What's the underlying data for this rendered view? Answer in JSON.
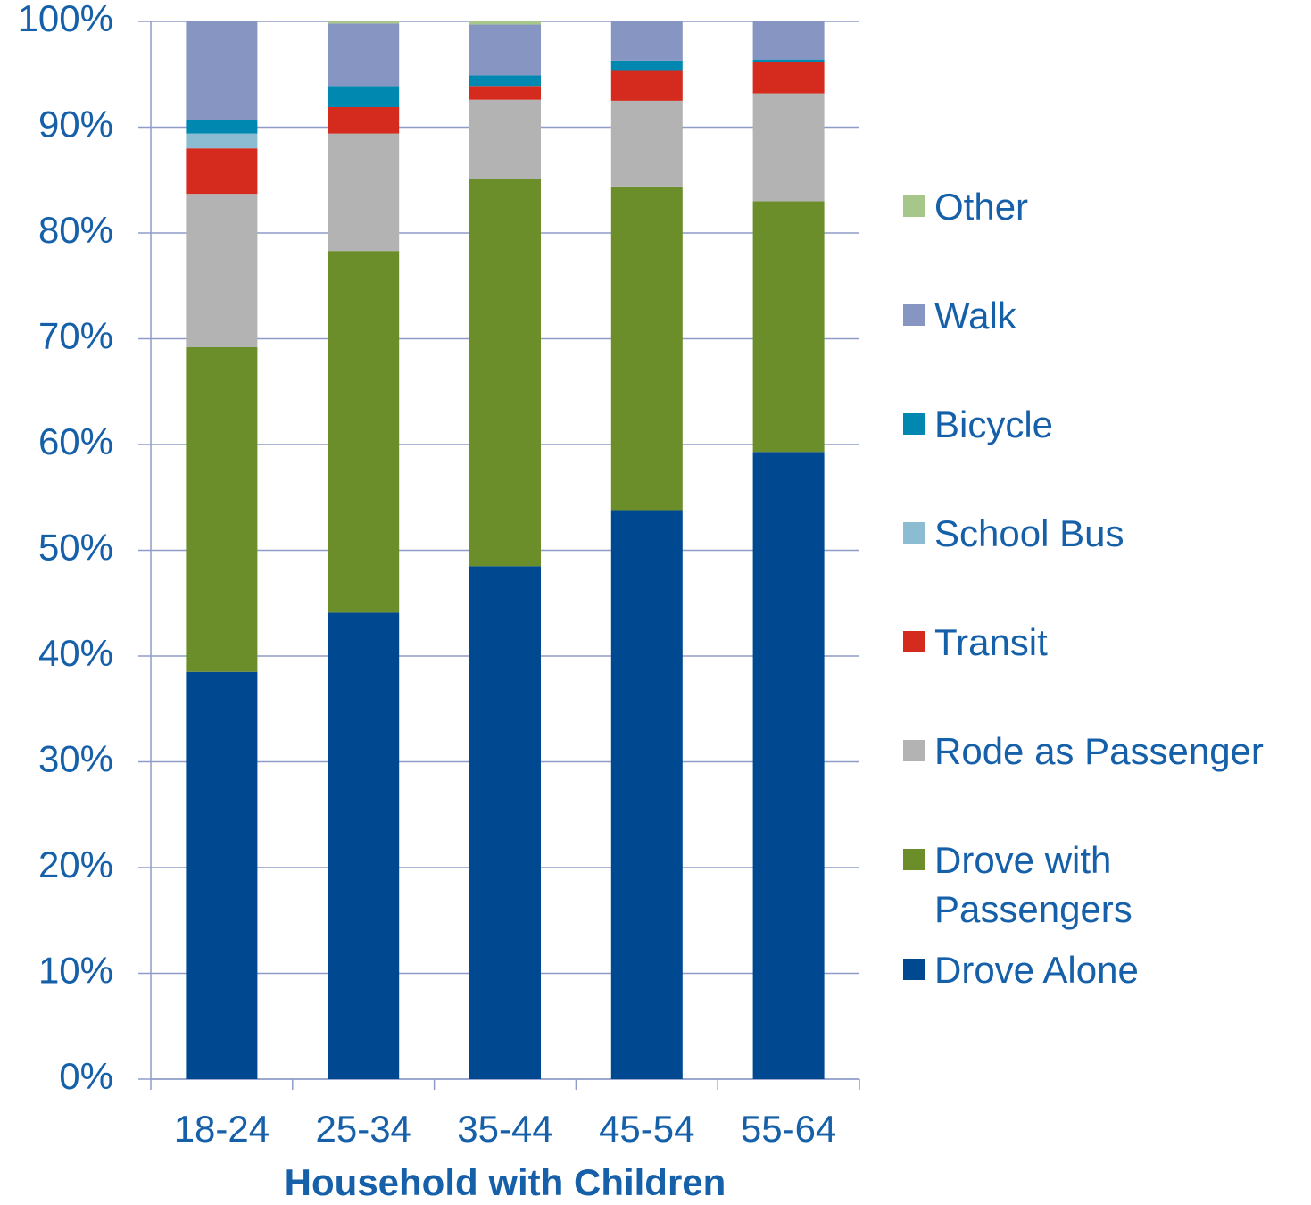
{
  "chart_data": {
    "type": "stacked_bar",
    "x_label": "Household with Children",
    "categories": [
      "18-24",
      "25-34",
      "35-44",
      "45-54",
      "55-64"
    ],
    "series": [
      {
        "name": "Drove Alone",
        "color": "#00488f",
        "values": [
          38.5,
          44.1,
          48.5,
          53.8,
          59.3
        ]
      },
      {
        "name": "Drove with Passengers",
        "color": "#6b8e2a",
        "values": [
          30.7,
          34.2,
          36.6,
          30.6,
          23.7
        ]
      },
      {
        "name": "Rode as Passenger",
        "color": "#b3b3b3",
        "values": [
          14.5,
          11.1,
          7.5,
          8.1,
          10.2
        ]
      },
      {
        "name": "Transit",
        "color": "#d52b1e",
        "values": [
          4.3,
          2.5,
          1.3,
          2.9,
          3.0
        ]
      },
      {
        "name": "School Bus",
        "color": "#8bbcd2",
        "values": [
          1.4,
          0,
          0,
          0,
          0
        ]
      },
      {
        "name": "Bicycle",
        "color": "#0088b0",
        "values": [
          1.3,
          2.0,
          1.0,
          0.9,
          0.2
        ]
      },
      {
        "name": "Walk",
        "color": "#8795c2",
        "values": [
          9.3,
          5.9,
          4.8,
          3.7,
          3.6
        ]
      },
      {
        "name": "Other",
        "color": "#a6c68a",
        "values": [
          0,
          0.2,
          0.3,
          0,
          0
        ]
      }
    ],
    "ylim": [
      0,
      100
    ],
    "yticks": [
      {
        "value": 0,
        "label": "0%"
      },
      {
        "value": 10,
        "label": "10%"
      },
      {
        "value": 20,
        "label": "20%"
      },
      {
        "value": 30,
        "label": "30%"
      },
      {
        "value": 40,
        "label": "40%"
      },
      {
        "value": 50,
        "label": "50%"
      },
      {
        "value": 60,
        "label": "60%"
      },
      {
        "value": 70,
        "label": "70%"
      },
      {
        "value": 80,
        "label": "80%"
      },
      {
        "value": 90,
        "label": "90%"
      },
      {
        "value": 100,
        "label": "100%"
      }
    ],
    "grid": true,
    "legend": "right"
  }
}
